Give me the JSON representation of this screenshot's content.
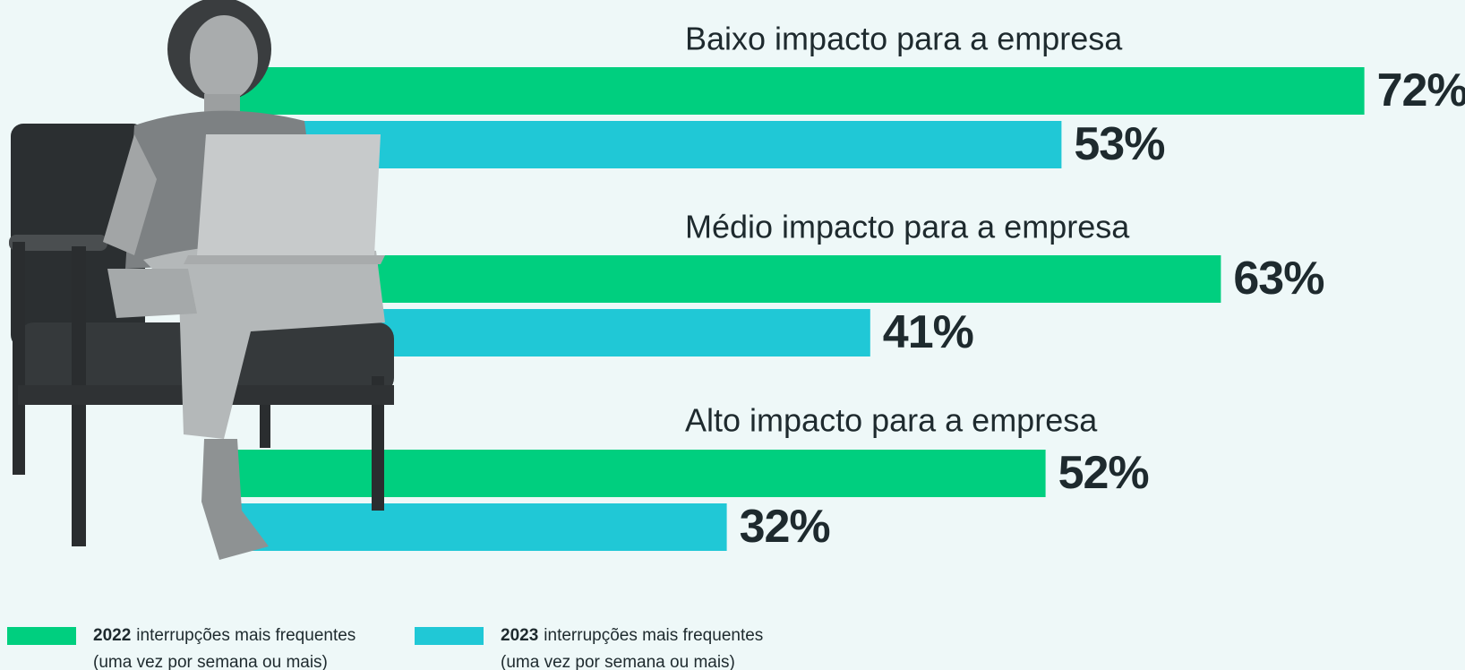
{
  "chart_data": {
    "type": "bar",
    "orientation": "horizontal",
    "categories": [
      "Baixo impacto para a empresa",
      "Médio impacto para a empresa",
      "Alto impacto para a empresa"
    ],
    "series": [
      {
        "name": "2022",
        "legend_text": "interrupções mais frequentes",
        "legend_note": "(uma vez por semana ou mais)",
        "color": "#00cf7f",
        "values": [
          72,
          63,
          52
        ],
        "value_labels": [
          "72%",
          "63%",
          "52%"
        ]
      },
      {
        "name": "2023",
        "legend_text": "interrupções mais frequentes",
        "legend_note": "(uma vez por semana ou mais)",
        "color": "#20c8d6",
        "values": [
          53,
          41,
          32
        ],
        "value_labels": [
          "53%",
          "41%",
          "32%"
        ]
      }
    ]
  }
}
